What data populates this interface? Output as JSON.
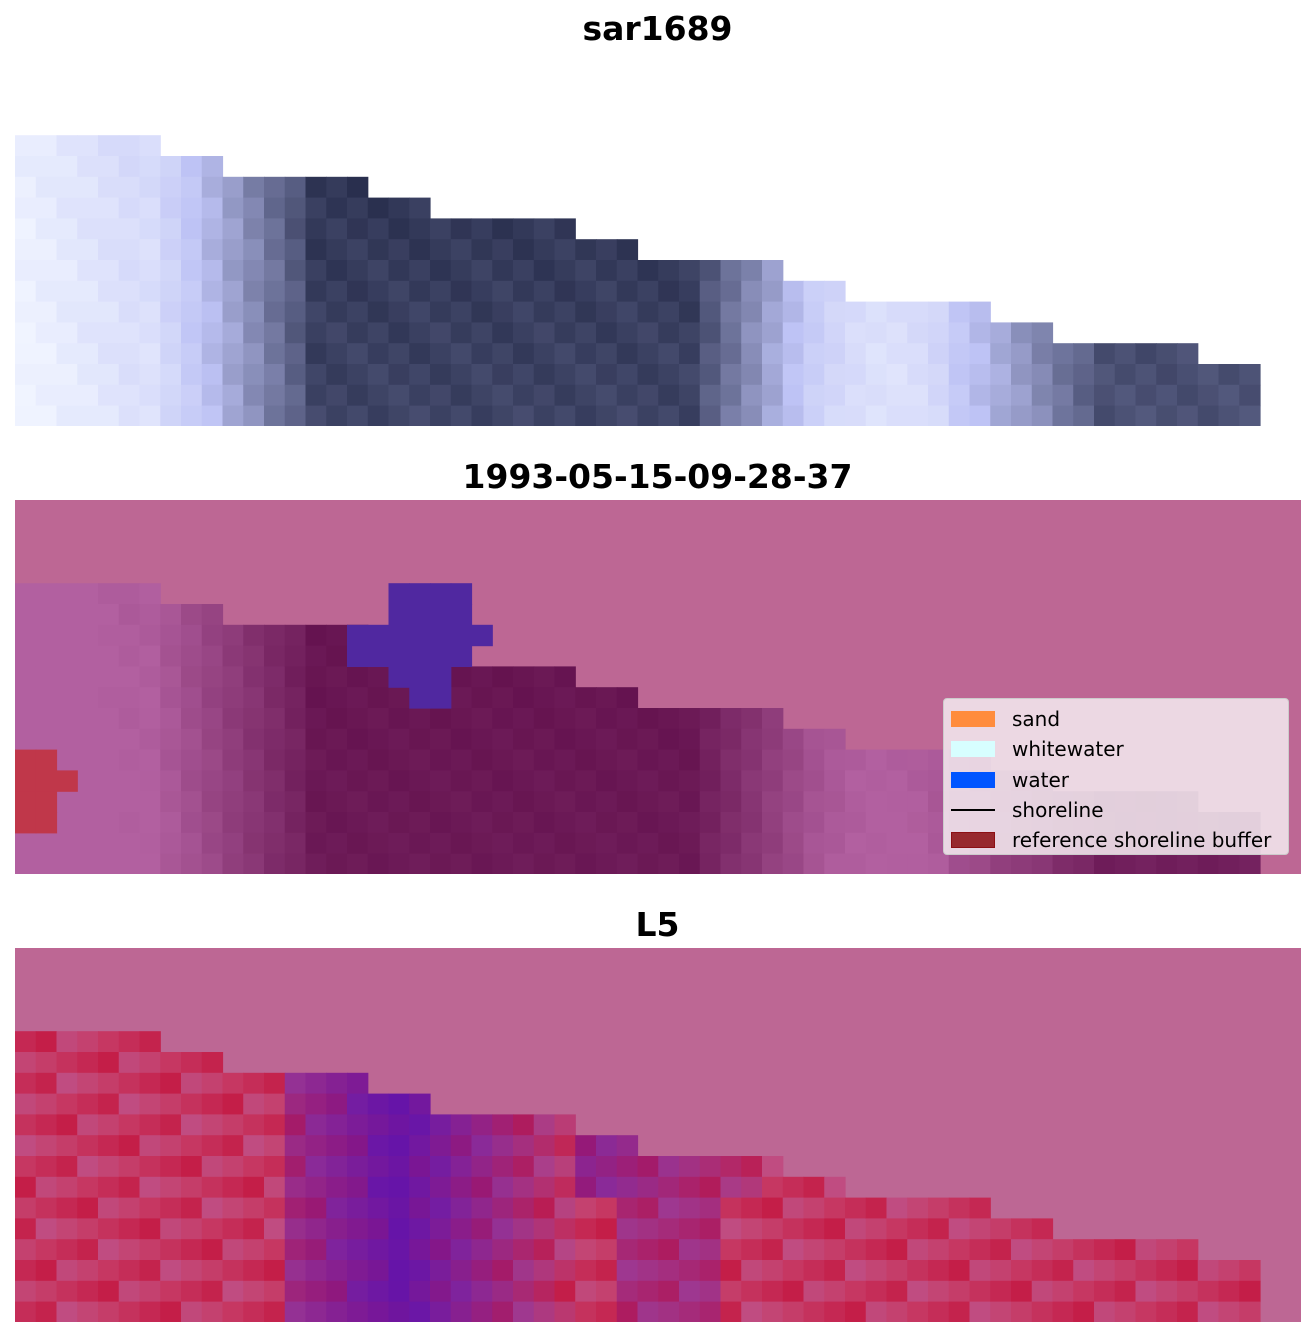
{
  "panels": [
    {
      "title": "sar1689"
    },
    {
      "title": "1993-05-15-09-28-37"
    },
    {
      "title": "L5"
    }
  ],
  "legend": {
    "items": [
      {
        "label": "sand",
        "color": "#ff8c3d",
        "kind": "patch"
      },
      {
        "label": "whitewater",
        "color": "#d7feff",
        "kind": "patch"
      },
      {
        "label": "water",
        "color": "#0055ff",
        "kind": "patch"
      },
      {
        "label": "shoreline",
        "color": "#000000",
        "kind": "line"
      },
      {
        "label": "reference shoreline buffer",
        "color": "#97292e",
        "kind": "patch"
      }
    ]
  },
  "colors": {
    "background_mask": "#bd6794",
    "reference_buffer_overlay": "#c0374a",
    "water_overlay": "#5028a0"
  }
}
